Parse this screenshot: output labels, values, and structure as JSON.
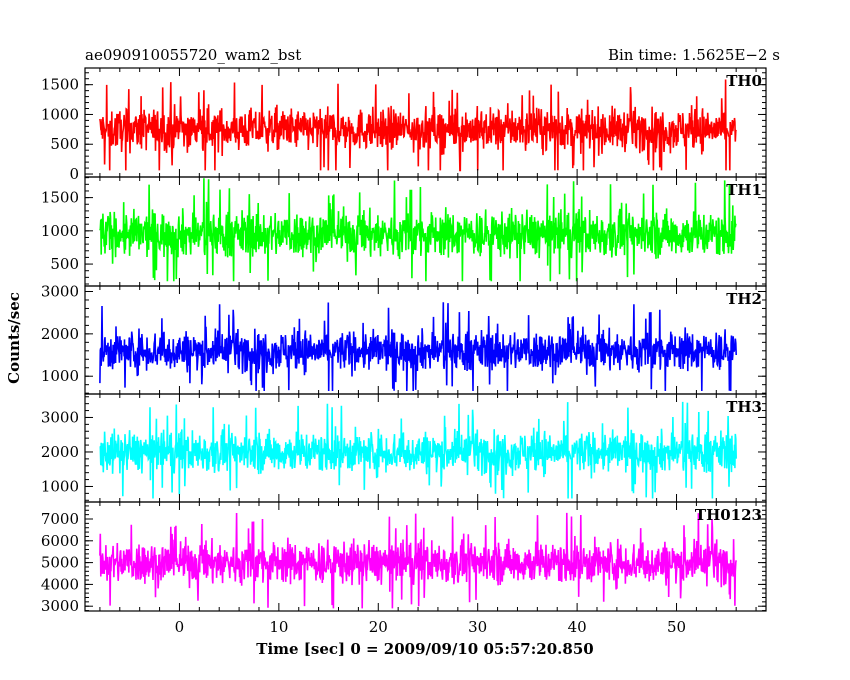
{
  "chart_data": {
    "type": "line",
    "title_left": "ae090910055720_wam2_bst",
    "title_right": "Bin time: 1.5625E−2 s",
    "xlabel": "Time [sec] 0 = 2009/09/10 05:57:20.850",
    "ylabel": "Counts/sec",
    "xlim": [
      -9.5,
      59
    ],
    "data_x_range": [
      -8,
      56
    ],
    "x_ticks": [
      0,
      10,
      20,
      30,
      40,
      50
    ],
    "grid": false,
    "panels": [
      {
        "name": "TH0",
        "color": "#ff0000",
        "ylim": [
          -50,
          1780
        ],
        "y_ticks": [
          0,
          500,
          1000,
          1500
        ],
        "mean": 750,
        "typical_range": [
          200,
          1300
        ],
        "peak_range": [
          60,
          1750
        ]
      },
      {
        "name": "TH1",
        "color": "#00ff00",
        "ylim": [
          170,
          1810
        ],
        "y_ticks": [
          500,
          1000,
          1500
        ],
        "mean": 950,
        "typical_range": [
          400,
          1500
        ],
        "peak_range": [
          240,
          1790
        ]
      },
      {
        "name": "TH2",
        "color": "#0000ff",
        "ylim": [
          580,
          3130
        ],
        "y_ticks": [
          1000,
          2000,
          3000
        ],
        "mean": 1600,
        "typical_range": [
          900,
          2400
        ],
        "peak_range": [
          650,
          3100
        ]
      },
      {
        "name": "TH3",
        "color": "#00ffff",
        "ylim": [
          550,
          3680
        ],
        "y_ticks": [
          1000,
          2000,
          3000
        ],
        "mean": 2000,
        "typical_range": [
          1100,
          3000
        ],
        "peak_range": [
          650,
          3650
        ]
      },
      {
        "name": "TH0123",
        "color": "#ff00ff",
        "ylim": [
          2780,
          7780
        ],
        "y_ticks": [
          3000,
          4000,
          5000,
          6000,
          7000
        ],
        "mean": 5000,
        "typical_range": [
          3600,
          6700
        ],
        "peak_range": [
          2900,
          7700
        ]
      }
    ]
  }
}
